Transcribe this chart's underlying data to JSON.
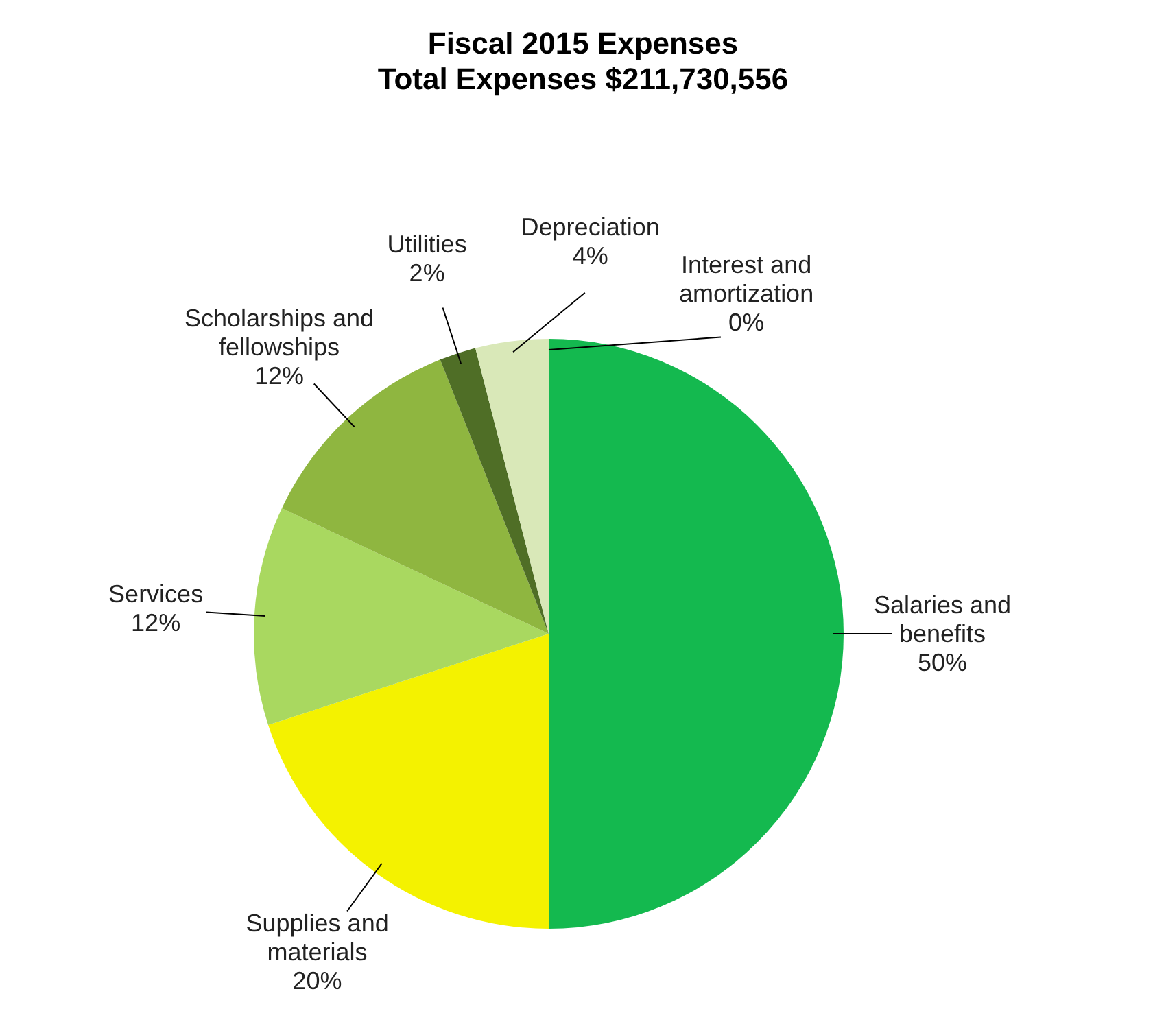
{
  "chart_data": {
    "type": "pie",
    "title": [
      "Fiscal 2015 Expenses",
      "Total Expenses $211,730,556"
    ],
    "categories": [
      "Salaries and benefits",
      "Supplies and materials",
      "Services",
      "Scholarships and fellowships",
      "Utilities",
      "Depreciation",
      "Interest and amortization"
    ],
    "values": [
      50,
      20,
      12,
      12,
      2,
      4,
      0
    ],
    "value_labels": [
      "50%",
      "20%",
      "12%",
      "12%",
      "2%",
      "4%",
      "0%"
    ],
    "colors": [
      "#14b94f",
      "#f4f200",
      "#a9d860",
      "#8fb640",
      "#4f6e26",
      "#d9e8b8",
      "#a8a888"
    ],
    "legend": false
  }
}
